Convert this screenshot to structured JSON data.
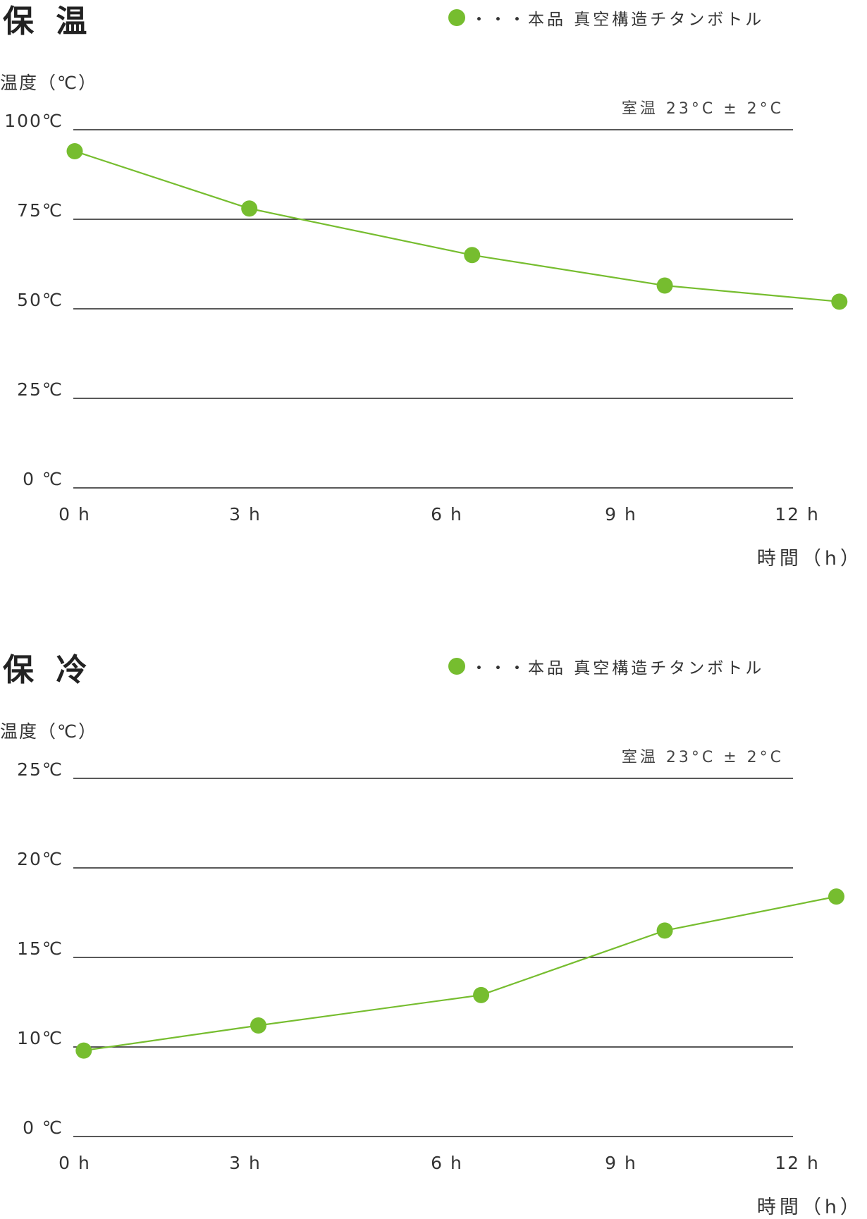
{
  "chart_data": [
    {
      "type": "line",
      "title": "保 温",
      "legend": "・・・本品 真空構造チタンボトル",
      "ylabel": "温度（℃）",
      "xlabel": "時間（h）",
      "annotation": "室温 23°C ± 2°C",
      "x": [
        0,
        3,
        6,
        9,
        12
      ],
      "x_tick_labels": [
        "0 h",
        "3 h",
        "6 h",
        "9 h",
        "12 h"
      ],
      "y_tick_values": [
        0,
        25,
        50,
        75,
        100
      ],
      "y_tick_labels": [
        "0 ℃",
        "25℃",
        "50℃",
        "75℃",
        "100℃"
      ],
      "ylim": [
        0,
        100
      ],
      "xlim": [
        0,
        12
      ],
      "grid": true,
      "series": [
        {
          "name": "本品 真空構造チタンボトル",
          "x": [
            0,
            2.9,
            6.6,
            9.8,
            12.7
          ],
          "values": [
            94,
            78,
            65,
            56.5,
            52
          ]
        }
      ],
      "color": "#76bd2f"
    },
    {
      "type": "line",
      "title": "保 冷",
      "legend": "・・・本品 真空構造チタンボトル",
      "ylabel": "温度（℃）",
      "xlabel": "時間（h）",
      "annotation": "室温 23°C ± 2°C",
      "x": [
        0,
        3,
        6,
        9,
        12
      ],
      "x_tick_labels": [
        "0 h",
        "3 h",
        "6 h",
        "9 h",
        "12 h"
      ],
      "y_tick_values": [
        0,
        10,
        15,
        20,
        25
      ],
      "y_tick_labels": [
        "0 ℃",
        "10℃",
        "15℃",
        "20℃",
        "25℃"
      ],
      "ylim": [
        0,
        25
      ],
      "xlim": [
        0,
        12
      ],
      "grid": true,
      "series": [
        {
          "name": "本品 真空構造チタンボトル",
          "x": [
            0.15,
            3.05,
            6.75,
            9.8,
            12.65
          ],
          "values": [
            9.6,
            11.2,
            12.9,
            16.5,
            18.4
          ]
        }
      ],
      "color": "#76bd2f"
    }
  ]
}
